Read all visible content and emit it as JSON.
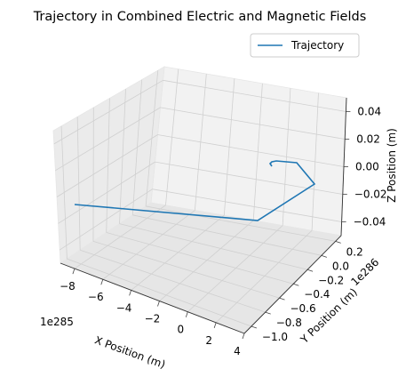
{
  "chart_data": {
    "type": "line",
    "projection": "3d",
    "title": "Trajectory in Combined Electric and Magnetic Fields",
    "xlabel": "X Position (m)",
    "ylabel": "Y Position (m)",
    "zlabel": "Z Position (m)",
    "x_offset_text": "1e285",
    "y_offset_text": "1e286",
    "x_ticks": [
      "−8",
      "−6",
      "−4",
      "−2",
      "0",
      "2",
      "4"
    ],
    "y_ticks": [
      "−1.0",
      "−0.8",
      "−0.6",
      "−0.4",
      "−0.2",
      "0.0",
      "0.2"
    ],
    "z_ticks": [
      "−0.04",
      "−0.02",
      "0.00",
      "0.02",
      "0.04"
    ],
    "xlim": [
      -9.0,
      4.0
    ],
    "ylim": [
      -1.1,
      0.28
    ],
    "zlim": [
      -0.05,
      0.05
    ],
    "grid": true,
    "legend_position": "top-right",
    "series": [
      {
        "name": "Trajectory",
        "color": "#1f77b4",
        "x": [
          0.0,
          0.0,
          0.0,
          0.1,
          0.3,
          1.0,
          2.0,
          -8.9
        ],
        "y": [
          0.0,
          0.0,
          0.0,
          0.0,
          0.0,
          -0.02,
          -0.2,
          -1.0
        ],
        "z": [
          0.0,
          0.0,
          0.0,
          0.0,
          0.0,
          0.0,
          0.0,
          0.0
        ],
        "points_screen_hint": "spiral-out"
      }
    ]
  }
}
